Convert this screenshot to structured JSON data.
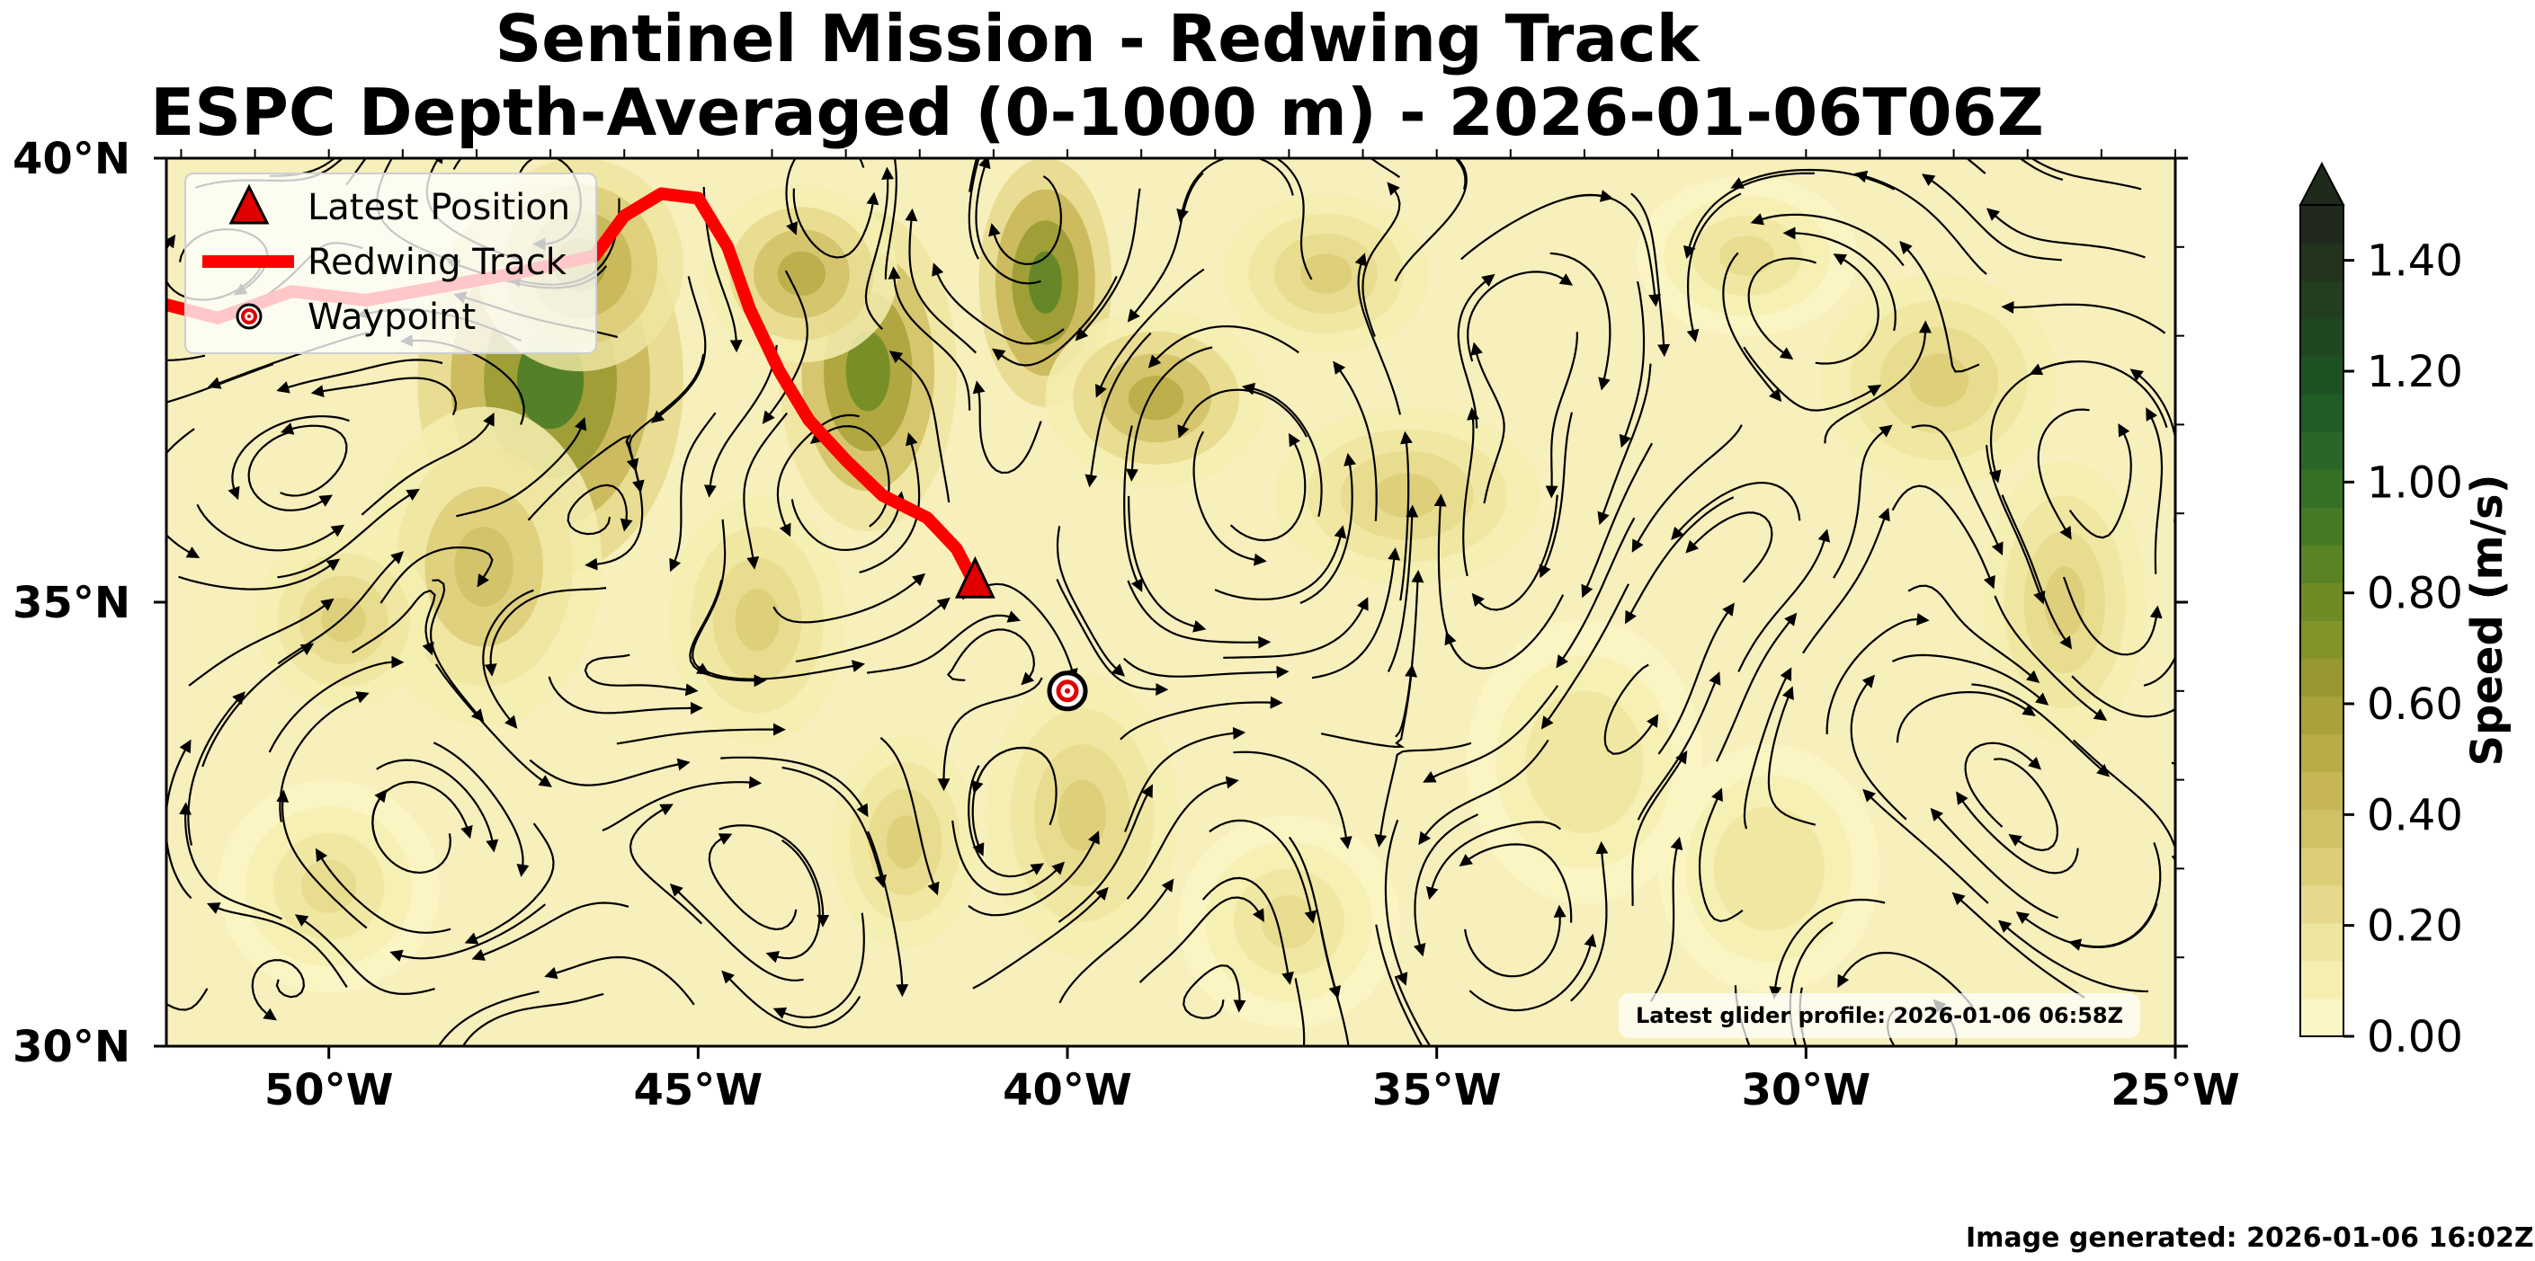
{
  "title": {
    "line1": "Sentinel Mission - Redwing Track",
    "line2": "ESPC Depth-Averaged (0-1000 m) - 2026-01-06T06Z"
  },
  "map": {
    "lon_ticks": [
      "50°W",
      "45°W",
      "40°W",
      "35°W",
      "30°W",
      "25°W"
    ],
    "lat_ticks": [
      "40°N",
      "35°N",
      "30°N"
    ],
    "extent": {
      "lon_min": -52.2,
      "lon_max": -25.0,
      "lat_min": 30,
      "lat_max": 40
    },
    "track": {
      "name": "Redwing Track",
      "color": "#ff0000",
      "points": [
        [
          -52.2,
          38.35
        ],
        [
          -51.5,
          38.2
        ],
        [
          -50.5,
          38.5
        ],
        [
          -49.5,
          38.4
        ],
        [
          -48.5,
          38.55
        ],
        [
          -47.5,
          38.7
        ],
        [
          -46.4,
          38.9
        ],
        [
          -46.0,
          39.35
        ],
        [
          -45.5,
          39.6
        ],
        [
          -45.0,
          39.55
        ],
        [
          -44.6,
          39.0
        ],
        [
          -44.3,
          38.3
        ],
        [
          -43.9,
          37.6
        ],
        [
          -43.5,
          37.05
        ],
        [
          -43.0,
          36.6
        ],
        [
          -42.5,
          36.2
        ],
        [
          -41.9,
          35.95
        ],
        [
          -41.5,
          35.6
        ],
        [
          -41.25,
          35.2
        ]
      ]
    },
    "latest_position": {
      "lon": -41.25,
      "lat": 35.2,
      "color": "#e00000"
    },
    "waypoint": {
      "lon": -40.0,
      "lat": 34.0
    }
  },
  "legend": {
    "items": [
      {
        "label": "Latest Position",
        "symbol": "triangle"
      },
      {
        "label": "Redwing Track",
        "symbol": "line"
      },
      {
        "label": "Waypoint",
        "symbol": "target"
      }
    ]
  },
  "colorbar": {
    "label": "Speed (m/s)",
    "min": 0.0,
    "max": 1.5,
    "ticks": [
      "0.00",
      "0.20",
      "0.40",
      "0.60",
      "0.80",
      "1.00",
      "1.20",
      "1.40"
    ],
    "extend": "max",
    "colors": [
      "#fcf5c4",
      "#f5efb2",
      "#eee5a0",
      "#e6d98c",
      "#dccd78",
      "#d1c166",
      "#c7b656",
      "#b9ab46",
      "#a9a13a",
      "#979930",
      "#839329",
      "#6f8b25",
      "#5a8324",
      "#467a25",
      "#357026",
      "#286727",
      "#1f5c26",
      "#1d5224",
      "#1f4722",
      "#223d20",
      "#22331e",
      "#20291b"
    ]
  },
  "annotations": {
    "profile_note": "Latest glider profile: 2026-01-06 06:58Z",
    "generated": "Image generated: 2026-01-06 16:02Z"
  }
}
